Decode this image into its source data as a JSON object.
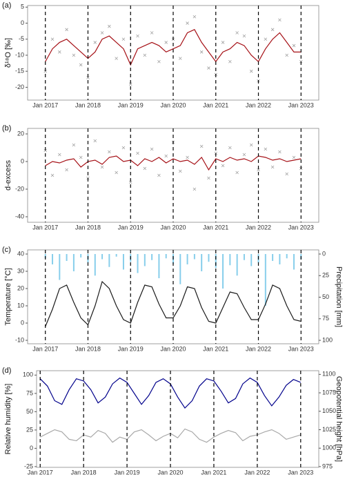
{
  "chart_data": [
    {
      "type": "line",
      "panel_label": "(a)",
      "ylabel": "δ¹⁸O [‰]",
      "xlim": [
        "2016-08",
        "2023-06"
      ],
      "ylim": [
        -24,
        5.5
      ],
      "yticks": [
        5,
        0,
        -5,
        -10,
        -15,
        -20
      ],
      "xticks": [
        {
          "value": "2017-01",
          "label": "Jan 2017"
        },
        {
          "value": "2018-01",
          "label": "Jan 2018"
        },
        {
          "value": "2019-01",
          "label": "Jan 2019"
        },
        {
          "value": "2020-01",
          "label": "Jan 2020"
        },
        {
          "value": "2021-01",
          "label": "Jan 2021"
        },
        {
          "value": "2022-01",
          "label": "Jan 2022"
        },
        {
          "value": "2023-01",
          "label": "Jan 2023"
        }
      ],
      "x": [
        "2017-01",
        "2017-03",
        "2017-05",
        "2017-07",
        "2017-09",
        "2017-11",
        "2018-01",
        "2018-03",
        "2018-05",
        "2018-07",
        "2018-09",
        "2018-11",
        "2019-01",
        "2019-03",
        "2019-05",
        "2019-07",
        "2019-09",
        "2019-11",
        "2020-01",
        "2020-03",
        "2020-05",
        "2020-07",
        "2020-09",
        "2020-11",
        "2021-01",
        "2021-03",
        "2021-05",
        "2021-07",
        "2021-09",
        "2021-11",
        "2022-01",
        "2022-03",
        "2022-05",
        "2022-07",
        "2022-09",
        "2022-11",
        "2023-01"
      ],
      "series": [
        {
          "type": "scatter",
          "color": "#a0a0a0",
          "values": [
            -15,
            -5,
            -9,
            -2,
            -10,
            -13,
            -17,
            -6,
            -3,
            -1,
            -11,
            -5,
            -19,
            -4,
            -10,
            -3,
            -12,
            -6,
            -5,
            -11,
            0,
            2,
            -9,
            -14,
            -16,
            -6,
            -12,
            -3,
            -4,
            -15,
            -18,
            -5,
            -2,
            1,
            -10,
            -7,
            -12
          ]
        },
        {
          "type": "line",
          "color": "#a50f15",
          "values": [
            -12,
            -8,
            -6,
            -5,
            -7,
            -9,
            -11,
            -9,
            -5,
            -4,
            -6,
            -8,
            -13,
            -8,
            -7,
            -6,
            -7,
            -9,
            -8,
            -7,
            -3,
            -2,
            -6,
            -9,
            -12,
            -9,
            -8,
            -6,
            -7,
            -10,
            -12,
            -8,
            -5,
            -3,
            -6,
            -9,
            -9
          ]
        }
      ]
    },
    {
      "type": "line",
      "panel_label": "(b)",
      "ylabel": "d-excess",
      "xlim": [
        "2016-08",
        "2023-06"
      ],
      "ylim": [
        -44,
        24
      ],
      "yticks": [
        20,
        0,
        -20,
        -40
      ],
      "xticks": [
        {
          "value": "2017-01",
          "label": "Jan 2017"
        },
        {
          "value": "2018-01",
          "label": "Jan 2018"
        },
        {
          "value": "2019-01",
          "label": "Jan 2019"
        },
        {
          "value": "2020-01",
          "label": "Jan 2020"
        },
        {
          "value": "2021-01",
          "label": "Jan 2021"
        },
        {
          "value": "2022-01",
          "label": "Jan 2022"
        },
        {
          "value": "2023-01",
          "label": "Jan 2023"
        }
      ],
      "x": [
        "2017-01",
        "2017-03",
        "2017-05",
        "2017-07",
        "2017-09",
        "2017-11",
        "2018-01",
        "2018-03",
        "2018-05",
        "2018-07",
        "2018-09",
        "2018-11",
        "2019-01",
        "2019-03",
        "2019-05",
        "2019-07",
        "2019-09",
        "2019-11",
        "2020-01",
        "2020-03",
        "2020-05",
        "2020-07",
        "2020-09",
        "2020-11",
        "2021-01",
        "2021-03",
        "2021-05",
        "2021-07",
        "2021-09",
        "2021-11",
        "2022-01",
        "2022-03",
        "2022-05",
        "2022-07",
        "2022-09",
        "2022-11",
        "2023-01"
      ],
      "series": [
        {
          "type": "scatter",
          "color": "#a0a0a0",
          "values": [
            8,
            -10,
            5,
            -6,
            12,
            3,
            -12,
            15,
            -4,
            7,
            -8,
            10,
            -15,
            6,
            -5,
            9,
            -10,
            4,
            14,
            -7,
            3,
            -20,
            11,
            -12,
            6,
            -3,
            10,
            -8,
            5,
            12,
            -6,
            9,
            -4,
            7,
            -9,
            3,
            -5
          ]
        },
        {
          "type": "line",
          "color": "#a50f15",
          "values": [
            -3,
            0,
            -1,
            1,
            2,
            -4,
            0,
            1,
            -2,
            3,
            4,
            0,
            1,
            -3,
            2,
            0,
            3,
            -1,
            2,
            0,
            1,
            -2,
            3,
            -6,
            2,
            0,
            3,
            1,
            2,
            0,
            4,
            3,
            1,
            2,
            0,
            1,
            2
          ]
        }
      ]
    },
    {
      "type": "line",
      "panel_label": "(c)",
      "ylabel": "Temperature [°C]",
      "y2label": "Precipitation [mm]",
      "xlim": [
        "2016-08",
        "2023-06"
      ],
      "ylim": [
        -12,
        42.4
      ],
      "yticks": [
        40,
        30,
        20,
        10,
        0,
        -10
      ],
      "y2lim": [
        104,
        -4.8
      ],
      "y2ticks": [
        0,
        25,
        50,
        75,
        100
      ],
      "xticks": [
        {
          "value": "2017-01",
          "label": "Jan 2017"
        },
        {
          "value": "2018-01",
          "label": "Jan 2018"
        },
        {
          "value": "2019-01",
          "label": "Jan 2019"
        },
        {
          "value": "2020-01",
          "label": "Jan 2020"
        },
        {
          "value": "2021-01",
          "label": "Jan 2021"
        },
        {
          "value": "2022-01",
          "label": "Jan 2022"
        },
        {
          "value": "2023-01",
          "label": "Jan 2023"
        }
      ],
      "x": [
        "2017-01",
        "2017-03",
        "2017-05",
        "2017-07",
        "2017-09",
        "2017-11",
        "2018-01",
        "2018-03",
        "2018-05",
        "2018-07",
        "2018-09",
        "2018-11",
        "2019-01",
        "2019-03",
        "2019-05",
        "2019-07",
        "2019-09",
        "2019-11",
        "2020-01",
        "2020-03",
        "2020-05",
        "2020-07",
        "2020-09",
        "2020-11",
        "2021-01",
        "2021-03",
        "2021-05",
        "2021-07",
        "2021-09",
        "2021-11",
        "2022-01",
        "2022-03",
        "2022-05",
        "2022-07",
        "2022-09",
        "2022-11",
        "2023-01"
      ],
      "series": [
        {
          "type": "bar",
          "axis": "y2",
          "color": "#87ceeb",
          "values": [
            5,
            12,
            30,
            8,
            20,
            4,
            10,
            25,
            6,
            15,
            3,
            18,
            9,
            22,
            14,
            7,
            28,
            5,
            11,
            35,
            12,
            6,
            20,
            9,
            16,
            40,
            13,
            25,
            7,
            14,
            10,
            60,
            8,
            12,
            5,
            18,
            6
          ]
        },
        {
          "type": "line",
          "color": "#1a1a1a",
          "values": [
            -2,
            8,
            20,
            22,
            12,
            3,
            -1,
            10,
            24,
            20,
            10,
            2,
            0,
            12,
            22,
            21,
            11,
            3,
            3,
            10,
            21,
            20,
            9,
            1,
            0,
            9,
            18,
            17,
            9,
            2,
            2,
            11,
            22,
            20,
            10,
            2,
            1
          ]
        }
      ]
    },
    {
      "type": "line",
      "panel_label": "(d)",
      "ylabel": "Relative humidity [%]",
      "y2label": "Geopotential height [hPa]",
      "xlim": [
        "2016-12",
        "2023-06"
      ],
      "ylim": [
        -26,
        106
      ],
      "yticks": [
        100,
        75,
        50,
        25,
        0,
        -25
      ],
      "y2lim": [
        974,
        1105
      ],
      "y2ticks": [
        1100,
        1075,
        1050,
        1025,
        1000,
        975
      ],
      "xticks": [
        {
          "value": "2017-01",
          "label": "Jan 2017"
        },
        {
          "value": "2018-01",
          "label": "Jan 2018"
        },
        {
          "value": "2019-01",
          "label": "Jan 2019"
        },
        {
          "value": "2020-01",
          "label": "Jan 2020"
        },
        {
          "value": "2021-01",
          "label": "Jan 2021"
        },
        {
          "value": "2022-01",
          "label": "Jan 2022"
        },
        {
          "value": "2023-01",
          "label": "Jan 2023"
        }
      ],
      "x": [
        "2017-01",
        "2017-03",
        "2017-05",
        "2017-07",
        "2017-09",
        "2017-11",
        "2018-01",
        "2018-03",
        "2018-05",
        "2018-07",
        "2018-09",
        "2018-11",
        "2019-01",
        "2019-03",
        "2019-05",
        "2019-07",
        "2019-09",
        "2019-11",
        "2020-01",
        "2020-03",
        "2020-05",
        "2020-07",
        "2020-09",
        "2020-11",
        "2021-01",
        "2021-03",
        "2021-05",
        "2021-07",
        "2021-09",
        "2021-11",
        "2022-01",
        "2022-03",
        "2022-05",
        "2022-07",
        "2022-09",
        "2022-11",
        "2023-01"
      ],
      "series": [
        {
          "type": "line",
          "axis": "y2",
          "color": "#a8a8a8",
          "values": [
            1015,
            1020,
            1025,
            1022,
            1012,
            1010,
            1018,
            1015,
            1024,
            1020,
            1008,
            1015,
            1012,
            1022,
            1025,
            1018,
            1010,
            1016,
            1020,
            1014,
            1026,
            1022,
            1012,
            1008,
            1015,
            1020,
            1024,
            1021,
            1010,
            1016,
            1018,
            1022,
            1025,
            1020,
            1012,
            1015,
            1018
          ]
        },
        {
          "type": "line",
          "color": "#00008b",
          "values": [
            95,
            85,
            65,
            60,
            80,
            95,
            92,
            80,
            62,
            70,
            88,
            96,
            90,
            75,
            60,
            72,
            90,
            95,
            88,
            70,
            55,
            65,
            85,
            95,
            92,
            78,
            62,
            68,
            88,
            96,
            90,
            72,
            58,
            70,
            86,
            94,
            90
          ]
        }
      ]
    }
  ]
}
